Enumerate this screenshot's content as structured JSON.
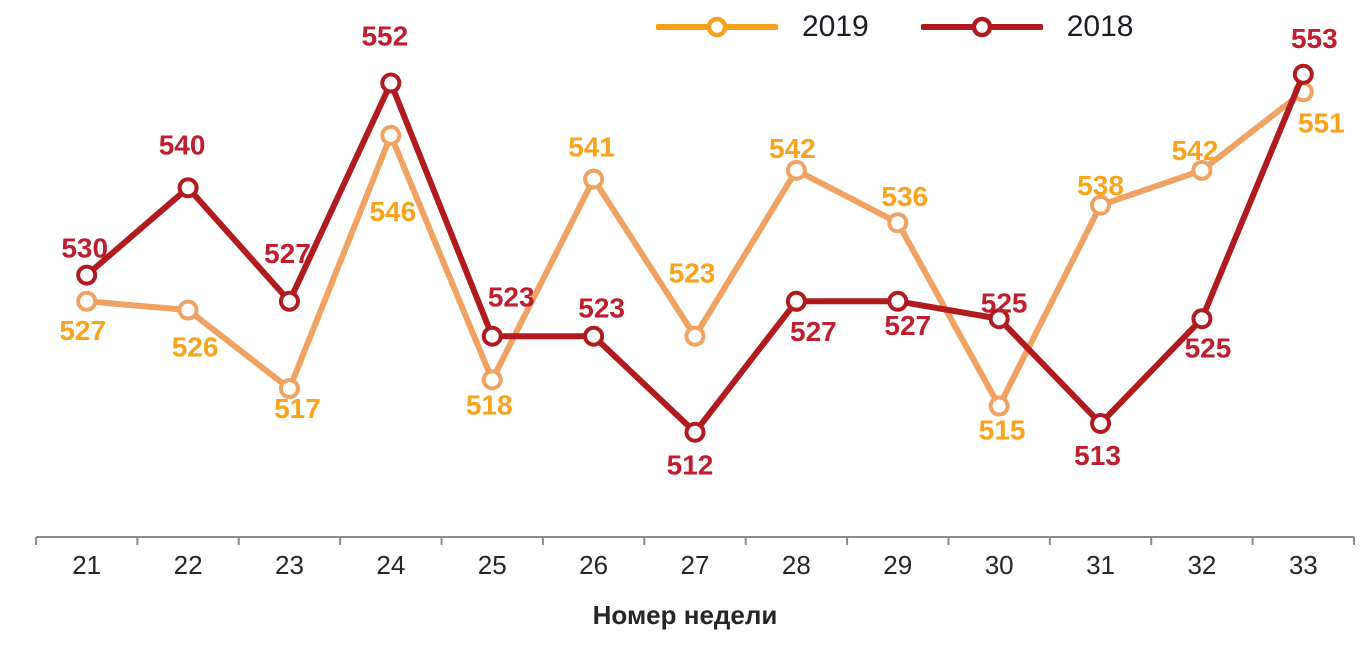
{
  "chart_data": {
    "type": "line",
    "title": "",
    "xlabel": "Номер недели",
    "x": [
      21,
      22,
      23,
      24,
      25,
      26,
      27,
      28,
      29,
      30,
      31,
      32,
      33
    ],
    "grid": false,
    "legend_position": "top-center",
    "markers": "open-circle",
    "data_labels": true,
    "axis_color": "#8c8c8c",
    "tick_label_color": "#262626",
    "y_value_at_axis": 500,
    "series": [
      {
        "name": "2019",
        "values": [
          527,
          526,
          517,
          546,
          518,
          541,
          523,
          542,
          536,
          515,
          538,
          542,
          551
        ],
        "line_color": "#F0A263",
        "legend_color": "#F7A01E",
        "label_color": "#F9A21B",
        "label_offsets": [
          [
            -4,
            29
          ],
          [
            7,
            37
          ],
          [
            8,
            20
          ],
          [
            2,
            76
          ],
          [
            -3,
            25
          ],
          [
            -2,
            -32
          ],
          [
            -3,
            -63
          ],
          [
            -4,
            -22
          ],
          [
            7,
            -26
          ],
          [
            3,
            24
          ],
          [
            0,
            -20
          ],
          [
            -7,
            -20
          ],
          [
            18,
            31
          ]
        ]
      },
      {
        "name": "2018",
        "values": [
          530,
          540,
          527,
          552,
          523,
          523,
          512,
          527,
          527,
          525,
          513,
          525,
          553
        ],
        "line_color": "#B01B20",
        "legend_color": "#B01B20",
        "label_color": "#BF1E2E",
        "label_offsets": [
          [
            -2,
            -27
          ],
          [
            -6,
            -43
          ],
          [
            -2,
            -48
          ],
          [
            -6,
            -47
          ],
          [
            19,
            -39
          ],
          [
            8,
            -28
          ],
          [
            -5,
            33
          ],
          [
            17,
            30
          ],
          [
            10,
            24
          ],
          [
            5,
            -16
          ],
          [
            -3,
            32
          ],
          [
            6,
            29
          ],
          [
            11,
            -36
          ]
        ]
      }
    ]
  },
  "legend": {
    "items": [
      {
        "label": "2019"
      },
      {
        "label": "2018"
      }
    ]
  }
}
